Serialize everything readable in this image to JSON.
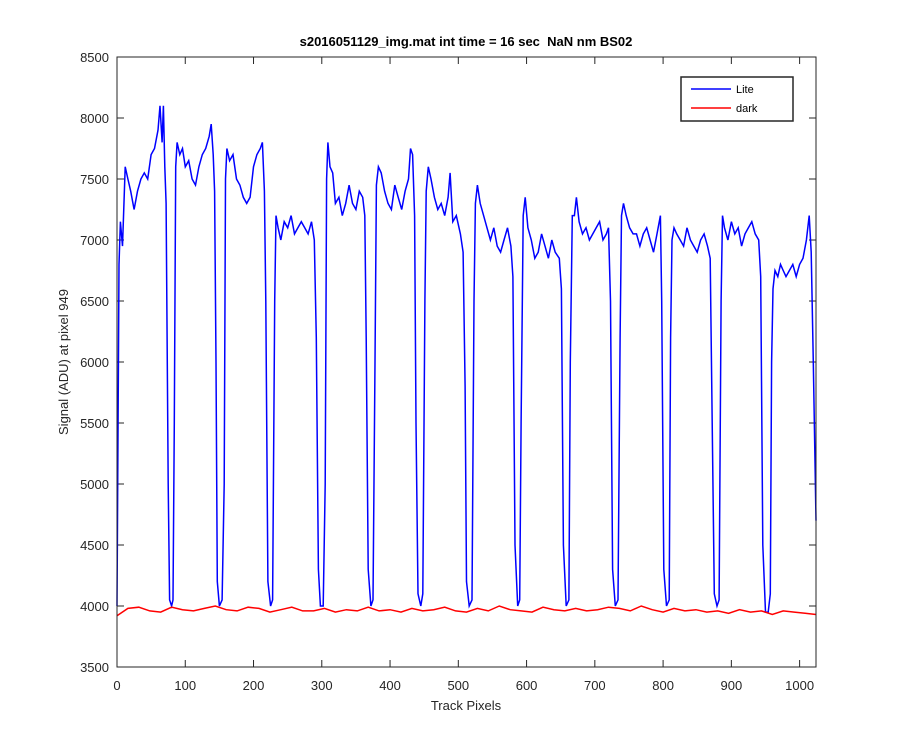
{
  "chart_data": {
    "type": "line",
    "title": "s2016051129_img.mat int time = 16 sec  NaN nm BS02",
    "x_label": "Track Pixels",
    "y_label": "Signal (ADU) at pixel 949",
    "xlim": [
      0,
      1024
    ],
    "ylim": [
      3500,
      8500
    ],
    "xticks": [
      0,
      100,
      200,
      300,
      400,
      500,
      600,
      700,
      800,
      900,
      1000
    ],
    "yticks": [
      3500,
      4000,
      4500,
      5000,
      5500,
      6000,
      6500,
      7000,
      7500,
      8000,
      8500
    ],
    "legend": "upper right",
    "grid": false,
    "series": [
      {
        "name": "Lite",
        "color": "#0000ff",
        "x": [
          0,
          3,
          5,
          8,
          12,
          16,
          20,
          25,
          30,
          35,
          40,
          45,
          50,
          55,
          60,
          63,
          66,
          68,
          70,
          72,
          75,
          77,
          80,
          82,
          84,
          86,
          88,
          92,
          96,
          100,
          105,
          110,
          115,
          120,
          125,
          130,
          135,
          138,
          141,
          143,
          145,
          147,
          150,
          154,
          157,
          159,
          161,
          165,
          170,
          175,
          180,
          185,
          190,
          195,
          200,
          205,
          210,
          213,
          216,
          218,
          221,
          225,
          228,
          231,
          233,
          236,
          240,
          245,
          250,
          255,
          260,
          265,
          270,
          275,
          280,
          285,
          289,
          292,
          295,
          298,
          302,
          305,
          307,
          309,
          312,
          316,
          320,
          325,
          330,
          335,
          340,
          345,
          350,
          355,
          360,
          363,
          365,
          368,
          372,
          375,
          378,
          380,
          383,
          387,
          392,
          397,
          402,
          407,
          412,
          417,
          422,
          427,
          430,
          433,
          436,
          438,
          441,
          445,
          448,
          451,
          453,
          456,
          460,
          465,
          470,
          475,
          480,
          485,
          488,
          492,
          497,
          503,
          507,
          510,
          512,
          516,
          520,
          523,
          525,
          528,
          532,
          537,
          542,
          547,
          552,
          557,
          562,
          567,
          572,
          577,
          580,
          583,
          587,
          590,
          592,
          595,
          598,
          602,
          607,
          612,
          617,
          622,
          627,
          632,
          637,
          642,
          648,
          651,
          654,
          658,
          662,
          664,
          667,
          670,
          673,
          677,
          682,
          687,
          692,
          697,
          702,
          707,
          712,
          717,
          720,
          723,
          726,
          730,
          734,
          737,
          739,
          742,
          746,
          751,
          756,
          761,
          766,
          771,
          776,
          781,
          786,
          791,
          796,
          798,
          801,
          805,
          809,
          811,
          813,
          816,
          820,
          825,
          830,
          835,
          840,
          845,
          850,
          855,
          860,
          865,
          869,
          872,
          875,
          879,
          882,
          885,
          887,
          890,
          895,
          900,
          905,
          910,
          915,
          920,
          925,
          930,
          935,
          940,
          943,
          946,
          950,
          954,
          957,
          959,
          961,
          964,
          968,
          972,
          976,
          980,
          985,
          990,
          995,
          1000,
          1005,
          1010,
          1014,
          1017,
          1020,
          1024
        ],
        "values": [
          4000,
          6800,
          7150,
          6950,
          7600,
          7500,
          7400,
          7250,
          7400,
          7500,
          7550,
          7500,
          7700,
          7750,
          7900,
          8100,
          7800,
          8100,
          7600,
          7300,
          5000,
          4050,
          4000,
          4050,
          5500,
          7600,
          7800,
          7700,
          7750,
          7600,
          7650,
          7500,
          7450,
          7600,
          7700,
          7750,
          7850,
          7950,
          7700,
          7400,
          6000,
          4200,
          4000,
          4050,
          5000,
          7500,
          7750,
          7650,
          7700,
          7500,
          7450,
          7350,
          7300,
          7350,
          7600,
          7700,
          7750,
          7800,
          7400,
          6500,
          4200,
          4000,
          4050,
          6500,
          7200,
          7100,
          7000,
          7150,
          7100,
          7200,
          7050,
          7100,
          7150,
          7100,
          7050,
          7150,
          7000,
          6200,
          4300,
          4000,
          4000,
          5000,
          7500,
          7800,
          7600,
          7550,
          7300,
          7350,
          7200,
          7300,
          7450,
          7300,
          7250,
          7400,
          7350,
          7200,
          6200,
          4300,
          4000,
          4050,
          6000,
          7450,
          7600,
          7550,
          7400,
          7300,
          7250,
          7450,
          7350,
          7250,
          7400,
          7500,
          7750,
          7700,
          7200,
          5500,
          4100,
          4000,
          4100,
          6500,
          7400,
          7600,
          7500,
          7350,
          7250,
          7300,
          7200,
          7350,
          7550,
          7150,
          7200,
          7050,
          6900,
          5800,
          4200,
          4000,
          4050,
          6500,
          7300,
          7450,
          7300,
          7200,
          7100,
          7000,
          7100,
          6950,
          6900,
          7000,
          7100,
          6950,
          6700,
          4500,
          4000,
          4050,
          5500,
          7200,
          7350,
          7100,
          7000,
          6850,
          6900,
          7050,
          6950,
          6850,
          7000,
          6900,
          6850,
          6600,
          4500,
          4000,
          4050,
          6000,
          7200,
          7200,
          7350,
          7150,
          7050,
          7100,
          7000,
          7050,
          7100,
          7150,
          7000,
          7050,
          7100,
          6500,
          4300,
          4000,
          4050,
          6200,
          7200,
          7300,
          7200,
          7100,
          7050,
          7050,
          6950,
          7050,
          7100,
          7000,
          6900,
          7050,
          7200,
          6500,
          4300,
          4000,
          4050,
          6200,
          7000,
          7100,
          7050,
          7000,
          6950,
          7100,
          7000,
          6950,
          6900,
          7000,
          7050,
          6950,
          6850,
          5500,
          4100,
          4000,
          4050,
          6500,
          7200,
          7100,
          7000,
          7150,
          7050,
          7100,
          6950,
          7050,
          7100,
          7150,
          7050,
          7000,
          6700,
          4500,
          3950,
          3950,
          4100,
          6000,
          6600,
          6750,
          6700,
          6800,
          6750,
          6700,
          6750,
          6800,
          6700,
          6800,
          6850,
          7000,
          7200,
          6900,
          6000,
          4700
        ]
      },
      {
        "name": "dark",
        "color": "#ff0000",
        "x": [
          0,
          16,
          32,
          48,
          64,
          80,
          96,
          112,
          128,
          144,
          160,
          176,
          192,
          208,
          224,
          240,
          256,
          272,
          288,
          304,
          320,
          336,
          352,
          368,
          384,
          400,
          416,
          432,
          448,
          464,
          480,
          496,
          512,
          528,
          544,
          560,
          576,
          592,
          608,
          624,
          640,
          656,
          672,
          688,
          704,
          720,
          736,
          752,
          768,
          784,
          800,
          816,
          832,
          848,
          864,
          880,
          896,
          912,
          928,
          944,
          960,
          976,
          992,
          1008,
          1024
        ],
        "values": [
          3920,
          3980,
          3990,
          3960,
          3950,
          3990,
          3970,
          3960,
          3980,
          4000,
          3970,
          3960,
          3990,
          3980,
          3950,
          3970,
          3990,
          3960,
          3960,
          3980,
          3950,
          3970,
          3960,
          3990,
          3960,
          3970,
          3950,
          3980,
          3960,
          3970,
          3990,
          3960,
          3950,
          3980,
          3960,
          4000,
          3970,
          3960,
          3950,
          3990,
          3970,
          3960,
          3980,
          3960,
          3970,
          3990,
          3980,
          3960,
          4000,
          3970,
          3950,
          3980,
          3960,
          3970,
          3950,
          3960,
          3940,
          3970,
          3950,
          3960,
          3930,
          3960,
          3950,
          3940,
          3930
        ]
      }
    ]
  }
}
